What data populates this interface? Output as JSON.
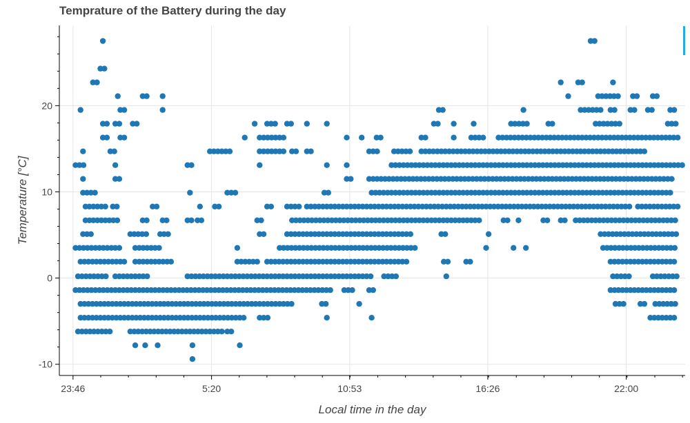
{
  "chart_data": {
    "type": "scatter",
    "title": "Temprature of the Battery during the day",
    "xlabel": "Local time in the day",
    "ylabel": "Temperature [°C]",
    "x_unit": "hours since 23:46",
    "xlim": [
      -0.55,
      24.6
    ],
    "ylim": [
      -11.3,
      29.3
    ],
    "xticks": [
      {
        "value": 0,
        "label": "23:46"
      },
      {
        "value": 5.5667,
        "label": "5:20"
      },
      {
        "value": 11.1167,
        "label": "10:53"
      },
      {
        "value": 16.6667,
        "label": "16:26"
      },
      {
        "value": 22.2333,
        "label": "22:00"
      }
    ],
    "yticks": [
      -10,
      0,
      10,
      20
    ],
    "grid": true,
    "marker_color": "#1f77b4",
    "temperature_levels": [
      -9.4,
      -7.8,
      -6.2,
      -4.6,
      -3.0,
      -1.4,
      0.2,
      1.9,
      3.5,
      5.1,
      6.7,
      8.3,
      9.9,
      11.5,
      13.1,
      14.7,
      16.3,
      17.9,
      19.5,
      21.1,
      22.7,
      24.3,
      27.5
    ],
    "series": [
      {
        "name": "",
        "bands": [
          {
            "y": -6.2,
            "ranges": [
              [
                0.2,
                1.5
              ],
              [
                2.3,
                6.0
              ],
              [
                6.2,
                6.5
              ]
            ]
          },
          {
            "y": -4.6,
            "ranges": [
              [
                0.3,
                7.0
              ],
              [
                7.5,
                7.9
              ],
              [
                10.2,
                10.3
              ],
              [
                12.0,
                12.1
              ],
              [
                23.2,
                24.3
              ]
            ]
          },
          {
            "y": -3.0,
            "ranges": [
              [
                0.3,
                8.9
              ],
              [
                10.0,
                10.2
              ],
              [
                11.5,
                11.6
              ],
              [
                21.8,
                22.2
              ],
              [
                22.8,
                23.0
              ],
              [
                23.4,
                24.3
              ]
            ]
          },
          {
            "y": -1.4,
            "ranges": [
              [
                0.1,
                10.4
              ],
              [
                10.9,
                11.3
              ],
              [
                11.9,
                12.2
              ],
              [
                21.6,
                24.3
              ]
            ]
          },
          {
            "y": 0.2,
            "ranges": [
              [
                0.2,
                1.4
              ],
              [
                1.7,
                3.0
              ],
              [
                4.6,
                12.0
              ],
              [
                12.5,
                13.0
              ],
              [
                15.0,
                15.1
              ],
              [
                21.7,
                22.4
              ],
              [
                23.3,
                24.3
              ]
            ]
          },
          {
            "y": 1.9,
            "ranges": [
              [
                0.3,
                2.2
              ],
              [
                2.5,
                4.0
              ],
              [
                6.6,
                7.5
              ],
              [
                7.8,
                13.4
              ],
              [
                14.9,
                15.1
              ],
              [
                15.8,
                16.0
              ],
              [
                21.6,
                24.3
              ]
            ]
          },
          {
            "y": 3.5,
            "ranges": [
              [
                0.1,
                2.0
              ],
              [
                2.5,
                3.5
              ],
              [
                6.6,
                6.7
              ],
              [
                8.3,
                13.8
              ],
              [
                16.6,
                16.7
              ],
              [
                17.7,
                17.8
              ],
              [
                18.2,
                18.3
              ],
              [
                21.3,
                24.3
              ]
            ]
          },
          {
            "y": 5.1,
            "ranges": [
              [
                0.4,
                0.8
              ],
              [
                2.3,
                3.0
              ],
              [
                3.5,
                3.9
              ],
              [
                7.5,
                7.7
              ],
              [
                8.6,
                13.6
              ],
              [
                14.8,
                15.0
              ],
              [
                16.7,
                16.8
              ],
              [
                21.2,
                24.3
              ]
            ]
          },
          {
            "y": 6.7,
            "ranges": [
              [
                0.5,
                1.8
              ],
              [
                2.8,
                3.0
              ],
              [
                3.6,
                3.8
              ],
              [
                4.6,
                4.8
              ],
              [
                5.0,
                5.2
              ],
              [
                7.4,
                7.7
              ],
              [
                8.8,
                15.9
              ],
              [
                16.0,
                16.4
              ],
              [
                17.3,
                17.5
              ],
              [
                17.9,
                18.0
              ],
              [
                18.9,
                19.1
              ],
              [
                19.6,
                19.8
              ],
              [
                20.2,
                24.3
              ]
            ]
          },
          {
            "y": 8.3,
            "ranges": [
              [
                0.5,
                1.3
              ],
              [
                1.6,
                1.8
              ],
              [
                3.2,
                3.5
              ],
              [
                5.1,
                5.2
              ],
              [
                5.7,
                6.0
              ],
              [
                7.8,
                8.0
              ],
              [
                8.6,
                9.1
              ],
              [
                9.4,
                22.4
              ],
              [
                22.7,
                24.3
              ]
            ]
          },
          {
            "y": 9.9,
            "ranges": [
              [
                0.4,
                0.9
              ],
              [
                4.7,
                4.8
              ],
              [
                6.2,
                6.6
              ],
              [
                10.1,
                10.3
              ],
              [
                12.0,
                24.1
              ]
            ]
          },
          {
            "y": 11.5,
            "ranges": [
              [
                0.4,
                0.5
              ],
              [
                1.7,
                1.9
              ],
              [
                11.0,
                11.3
              ],
              [
                11.9,
                24.1
              ]
            ]
          },
          {
            "y": 13.1,
            "ranges": [
              [
                0.1,
                0.5
              ],
              [
                1.7,
                1.8
              ],
              [
                4.6,
                4.8
              ],
              [
                7.5,
                7.6
              ],
              [
                10.2,
                10.3
              ],
              [
                11.0,
                11.1
              ],
              [
                12.8,
                24.5
              ]
            ]
          },
          {
            "y": 14.7,
            "ranges": [
              [
                0.4,
                0.5
              ],
              [
                1.5,
                1.8
              ],
              [
                5.5,
                6.3
              ],
              [
                7.5,
                8.5
              ],
              [
                8.8,
                9.1
              ],
              [
                9.4,
                9.6
              ],
              [
                11.9,
                12.3
              ],
              [
                12.9,
                13.6
              ],
              [
                14.0,
                23.1
              ]
            ]
          },
          {
            "y": 16.3,
            "ranges": [
              [
                1.2,
                1.4
              ],
              [
                1.9,
                2.1
              ],
              [
                6.9,
                7.0
              ],
              [
                7.5,
                8.5
              ],
              [
                11.0,
                11.1
              ],
              [
                11.6,
                11.7
              ],
              [
                12.2,
                12.4
              ],
              [
                14.0,
                14.2
              ],
              [
                15.3,
                15.4
              ],
              [
                16.0,
                16.6
              ],
              [
                17.1,
                24.3
              ]
            ]
          },
          {
            "y": 17.9,
            "ranges": [
              [
                1.2,
                1.4
              ],
              [
                1.7,
                1.9
              ],
              [
                2.4,
                2.7
              ],
              [
                7.3,
                7.4
              ],
              [
                7.8,
                8.2
              ],
              [
                8.6,
                8.8
              ],
              [
                9.4,
                9.5
              ],
              [
                10.2,
                10.3
              ],
              [
                14.5,
                14.7
              ],
              [
                15.3,
                15.4
              ],
              [
                16.1,
                16.2
              ],
              [
                17.6,
                18.3
              ],
              [
                19.1,
                19.3
              ],
              [
                21.0,
                22.0
              ],
              [
                23.9,
                24.3
              ]
            ]
          },
          {
            "y": 19.5,
            "ranges": [
              [
                0.3,
                0.4
              ],
              [
                1.9,
                2.1
              ],
              [
                3.6,
                3.7
              ],
              [
                14.7,
                14.9
              ],
              [
                18.1,
                18.2
              ],
              [
                20.4,
                21.2
              ],
              [
                21.6,
                21.8
              ],
              [
                22.4,
                22.6
              ],
              [
                23.1,
                23.3
              ],
              [
                24.0,
                24.2
              ]
            ]
          },
          {
            "y": 21.1,
            "ranges": [
              [
                1.8,
                1.9
              ],
              [
                2.8,
                3.0
              ],
              [
                3.6,
                3.7
              ],
              [
                19.9,
                20.0
              ],
              [
                21.1,
                22.0
              ],
              [
                22.5,
                22.7
              ],
              [
                23.3,
                23.5
              ]
            ]
          },
          {
            "y": 22.7,
            "ranges": [
              [
                0.8,
                1.0
              ],
              [
                19.6,
                19.7
              ],
              [
                20.3,
                20.5
              ],
              [
                21.7,
                21.8
              ]
            ]
          },
          {
            "y": 24.3,
            "ranges": [
              [
                1.1,
                1.3
              ]
            ]
          },
          {
            "y": 27.5,
            "ranges": [
              [
                1.2,
                1.3
              ],
              [
                20.8,
                21.0
              ]
            ]
          },
          {
            "y": -7.8,
            "ranges": [
              [
                2.5,
                2.6
              ],
              [
                2.9,
                3.0
              ],
              [
                3.4,
                3.5
              ],
              [
                4.8,
                4.9
              ],
              [
                6.7,
                6.8
              ]
            ]
          },
          {
            "y": -9.4,
            "ranges": [
              [
                4.8,
                4.9
              ]
            ]
          }
        ]
      }
    ]
  }
}
